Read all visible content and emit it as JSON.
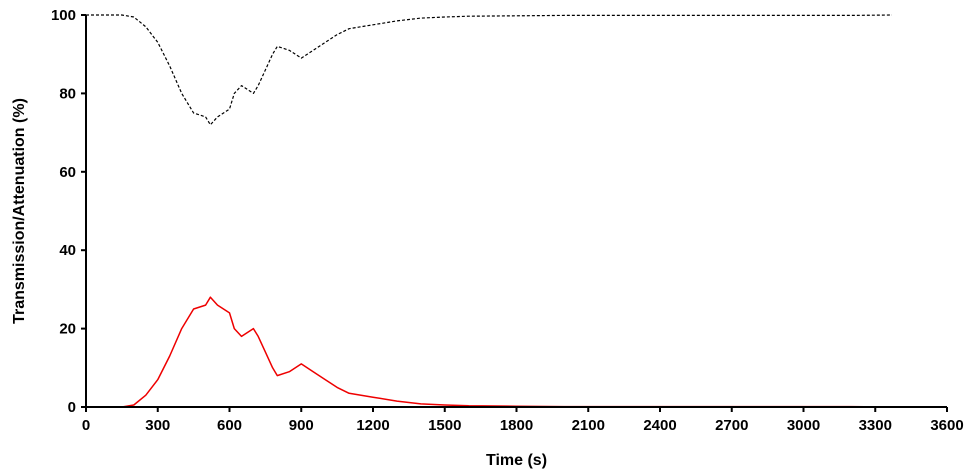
{
  "chart_data": {
    "type": "line",
    "title": "",
    "xlabel": "Time (s)",
    "ylabel": "Transmission/Attenuation (%)",
    "xlim": [
      0,
      3600
    ],
    "ylim": [
      0,
      100
    ],
    "xticks": [
      0,
      300,
      600,
      900,
      1200,
      1500,
      1800,
      2100,
      2400,
      2700,
      3000,
      3300,
      3600
    ],
    "yticks": [
      0,
      20,
      40,
      60,
      80,
      100
    ],
    "grid": false,
    "legend": "none",
    "series": [
      {
        "color": "#000000",
        "style": "dashed",
        "x": [
          0,
          150,
          200,
          250,
          300,
          350,
          400,
          450,
          500,
          520,
          550,
          600,
          620,
          650,
          700,
          720,
          750,
          780,
          800,
          850,
          900,
          950,
          1000,
          1050,
          1100,
          1200,
          1300,
          1400,
          1500,
          1600,
          1800,
          2000,
          2400,
          2800,
          3200,
          3370
        ],
        "y": [
          100,
          100,
          99.5,
          97,
          93,
          87,
          80,
          75,
          74,
          72,
          74,
          76,
          80,
          82,
          80,
          82,
          86,
          90,
          92,
          91,
          89,
          91,
          93,
          95,
          96.5,
          97.5,
          98.5,
          99.2,
          99.5,
          99.7,
          99.8,
          99.9,
          99.9,
          99.9,
          99.9,
          100
        ]
      },
      {
        "color": "#ee0000",
        "style": "solid",
        "x": [
          0,
          150,
          200,
          250,
          300,
          350,
          400,
          450,
          500,
          520,
          550,
          600,
          620,
          650,
          700,
          720,
          750,
          780,
          800,
          850,
          900,
          950,
          1000,
          1050,
          1100,
          1200,
          1300,
          1400,
          1500,
          1600,
          1800,
          2000,
          2400,
          2800,
          3200,
          3370
        ],
        "y": [
          0,
          0,
          0.5,
          3,
          7,
          13,
          20,
          25,
          26,
          28,
          26,
          24,
          20,
          18,
          20,
          18,
          14,
          10,
          8,
          9,
          11,
          9,
          7,
          5,
          3.5,
          2.5,
          1.5,
          0.8,
          0.5,
          0.3,
          0.2,
          0.1,
          0.1,
          0.1,
          0.1,
          0
        ]
      }
    ]
  }
}
